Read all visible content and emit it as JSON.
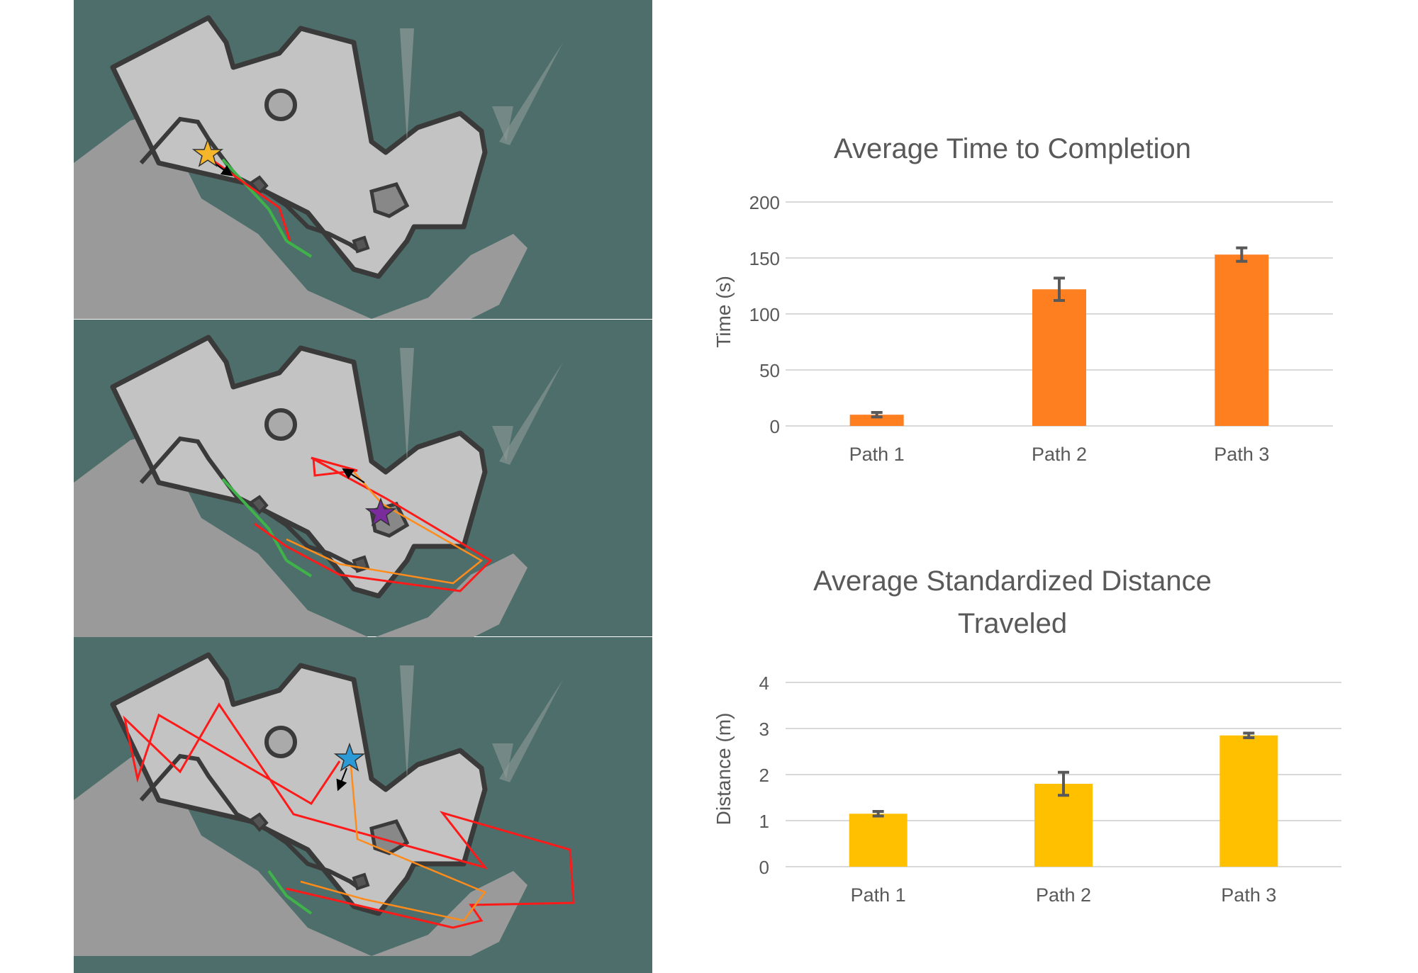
{
  "colors": {
    "background_teal": "#4d6e6a",
    "map_floor": "#c3c3c3",
    "map_wall": "#3a3a3a",
    "path_red": "#ff1a1a",
    "path_orange": "#ff8c1a",
    "boundary_green": "#3fb34a",
    "star_yellow": "#f6b62b",
    "star_purple": "#7a2b9c",
    "star_blue": "#2d9ad8",
    "bar_orange": "#fd7f20",
    "bar_yellow": "#ffc000",
    "error_bar": "#595959",
    "grid": "#d9d9d9",
    "text": "#595959"
  },
  "maps": [
    {
      "panel": "map-panel-1",
      "star": "star_yellow",
      "route": "Path 1"
    },
    {
      "panel": "map-panel-2",
      "star": "star_purple",
      "route": "Path 2"
    },
    {
      "panel": "map-panel-3",
      "star": "star_blue",
      "route": "Path 3"
    }
  ],
  "chart_data": [
    {
      "type": "bar",
      "title": "Average Time to Completion",
      "xlabel": "",
      "ylabel": "Time (s)",
      "categories": [
        "Path 1",
        "Path 2",
        "Path 3"
      ],
      "values": [
        10,
        122,
        153
      ],
      "error": [
        2,
        10,
        6
      ],
      "ylim": [
        0,
        200
      ],
      "yticks": [
        0,
        50,
        100,
        150,
        200
      ],
      "grid": true,
      "legend": "none",
      "color": "bar_orange"
    },
    {
      "type": "bar",
      "title": "Average Standardized Distance Traveled",
      "xlabel": "",
      "ylabel": "Distance (m)",
      "categories": [
        "Path 1",
        "Path 2",
        "Path 3"
      ],
      "values": [
        1.15,
        1.8,
        2.85
      ],
      "error": [
        0.05,
        0.25,
        0.05
      ],
      "ylim": [
        0,
        4
      ],
      "yticks": [
        0,
        1,
        2,
        3,
        4
      ],
      "grid": true,
      "legend": "none",
      "color": "bar_yellow"
    }
  ]
}
